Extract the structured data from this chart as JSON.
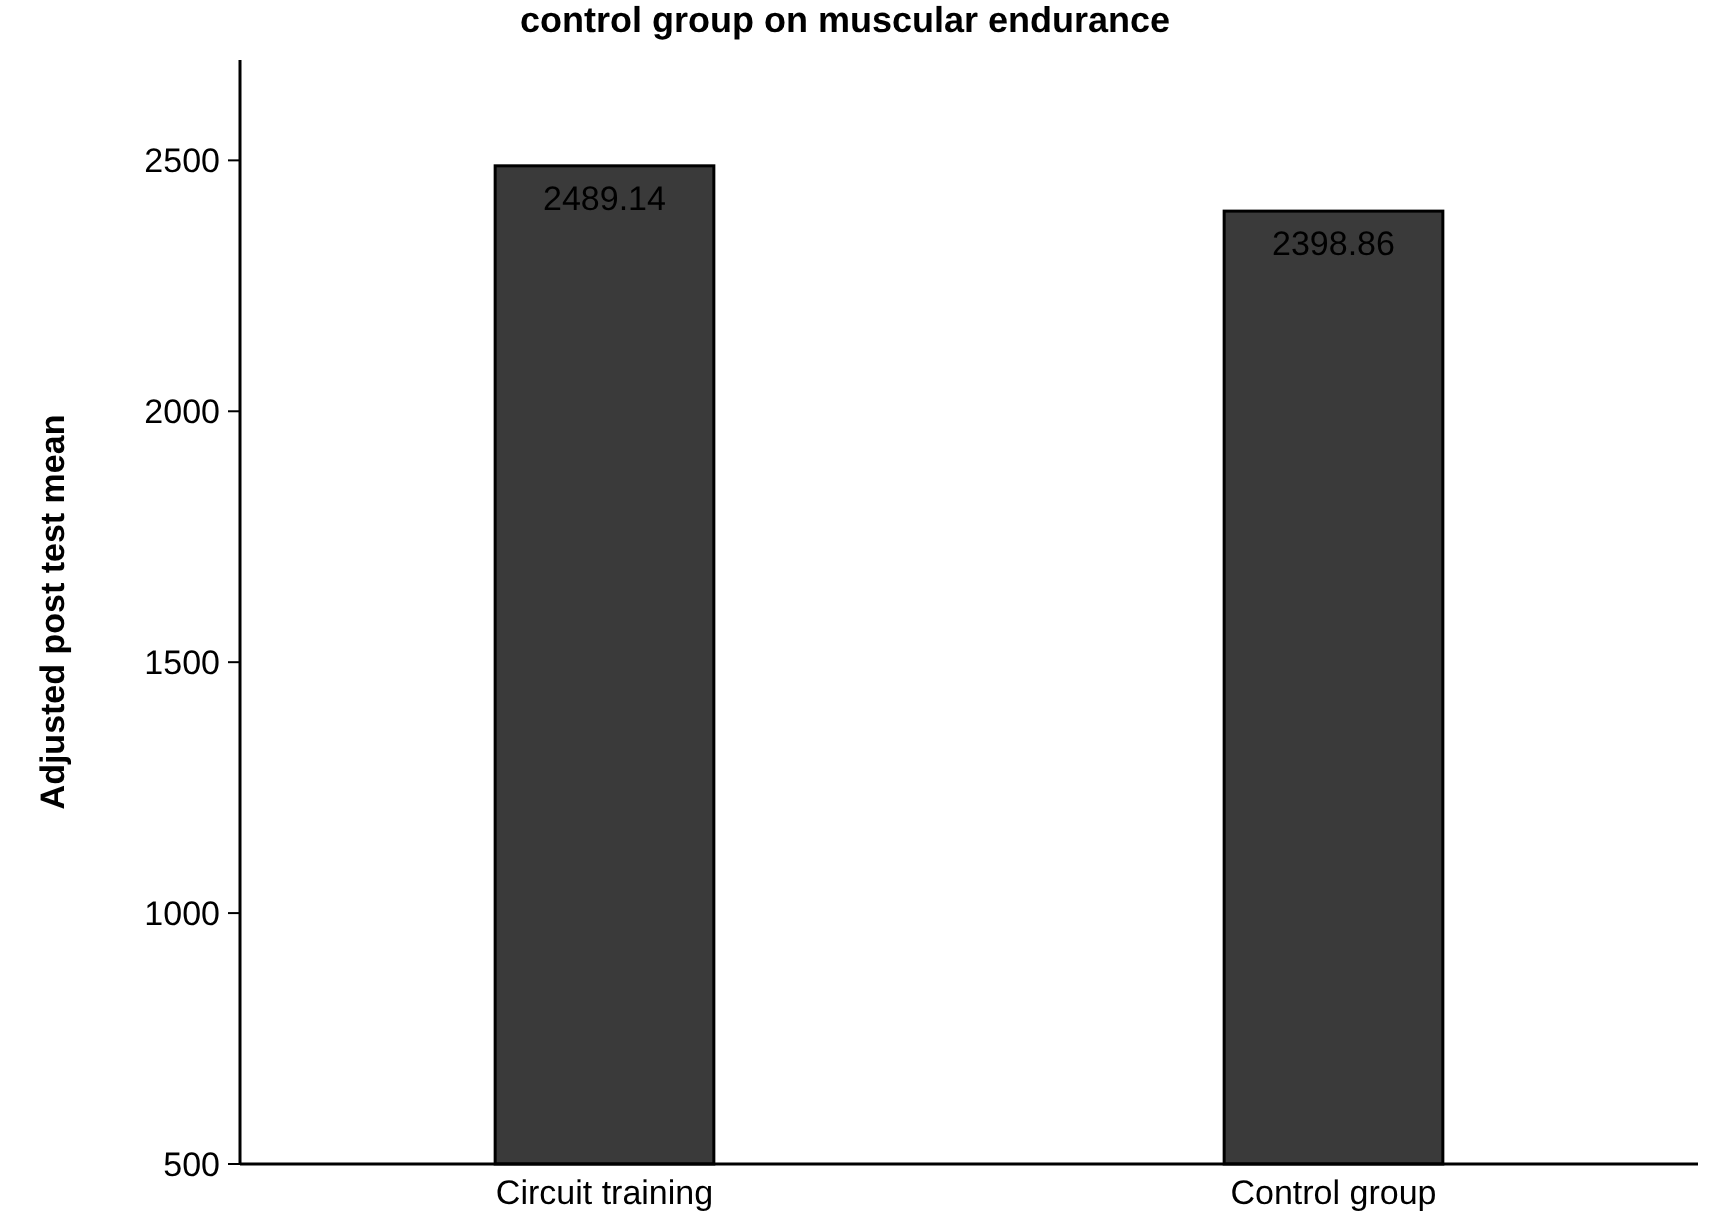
{
  "chart_data": {
    "type": "bar",
    "title": "control group on muscular endurance",
    "ylabel": "Adjusted post test mean",
    "categories": [
      "Circuit training",
      "Control group"
    ],
    "values": [
      2489.14,
      2398.86
    ],
    "color": "#3a3a3a",
    "ylim": [
      500,
      2700
    ],
    "yticks": [
      500,
      1000,
      1500,
      2000,
      2500
    ],
    "data_labels": true,
    "grid": false
  }
}
